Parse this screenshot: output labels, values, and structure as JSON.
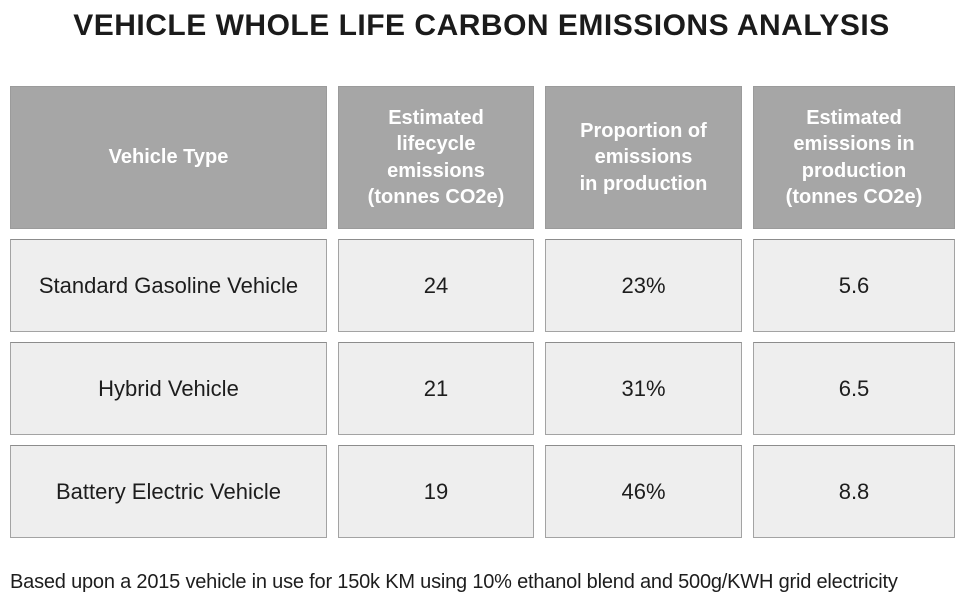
{
  "title": "VEHICLE WHOLE LIFE CARBON EMISSIONS ANALYSIS",
  "chart_data": {
    "type": "table",
    "title": "VEHICLE WHOLE LIFE CARBON EMISSIONS ANALYSIS",
    "columns": [
      "Vehicle Type",
      "Estimated\nlifecycle\nemissions\n(tonnes CO2e)",
      "Proportion of\nemissions\nin production",
      "Estimated\nemissions in\nproduction\n(tonnes CO2e)"
    ],
    "columns_plain": [
      "Vehicle Type",
      "Estimated lifecycle emissions (tonnes CO2e)",
      "Proportion of emissions in production",
      "Estimated emissions in production (tonnes CO2e)"
    ],
    "rows": [
      [
        "Standard Gasoline Vehicle",
        "24",
        "23%",
        "5.6"
      ],
      [
        "Hybrid Vehicle",
        "21",
        "31%",
        "6.5"
      ],
      [
        "Battery Electric Vehicle",
        "19",
        "46%",
        "8.8"
      ]
    ],
    "footnote": "Based upon a 2015 vehicle in use for 150k KM using 10% ethanol blend and 500g/KWH grid electricity"
  },
  "colors": {
    "header_bg": "#a6a6a6",
    "header_text": "#ffffff",
    "cell_bg": "#eeeeee",
    "cell_border": "#a3a3a3",
    "text": "#1d1d1d",
    "page_bg": "#ffffff"
  }
}
